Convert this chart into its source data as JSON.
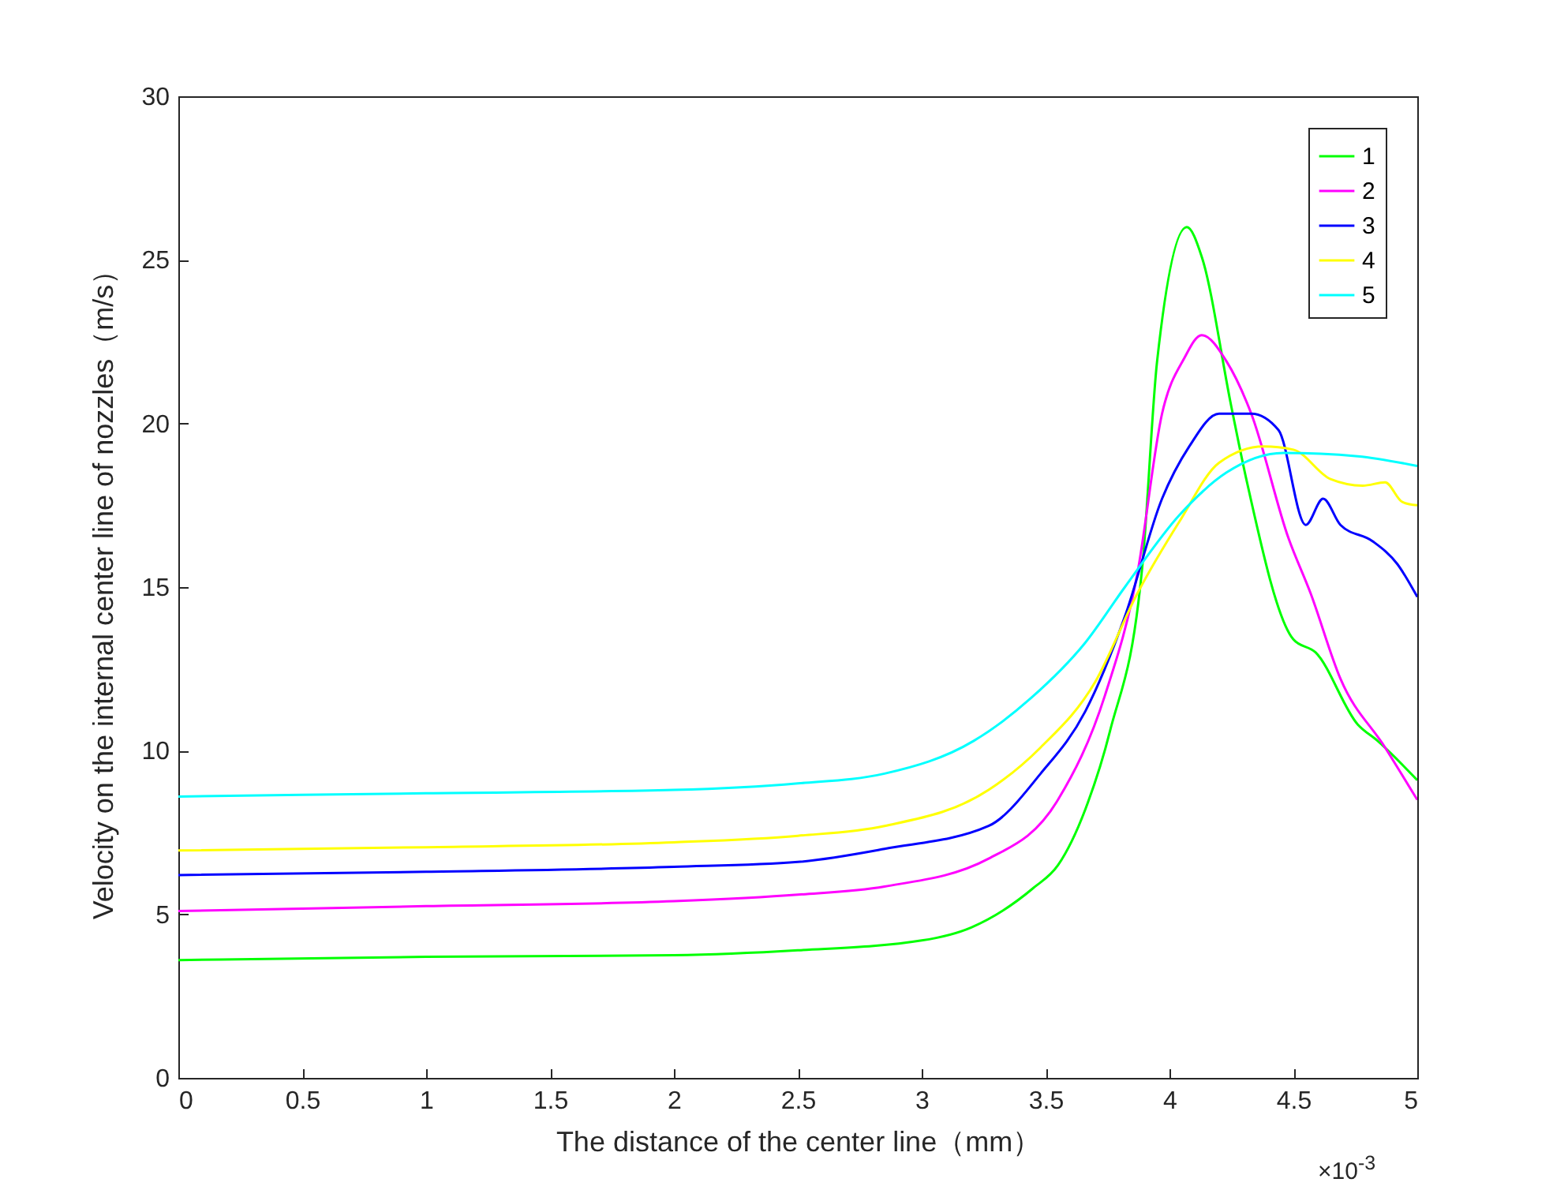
{
  "chart_data": {
    "type": "line",
    "xlabel": "The distance of the center line（mm）",
    "ylabel": "Velocity  on the internal center line of nozzles（m/s）",
    "annotations": [
      "×10$^{-3}$"
    ],
    "xlim": [
      0,
      5
    ],
    "xticks": [
      0,
      0.5,
      1,
      1.5,
      2,
      2.5,
      3,
      3.5,
      4,
      4.5,
      5
    ],
    "ylim": [
      0,
      30
    ],
    "yticks": [
      0,
      5,
      10,
      15,
      20,
      25,
      30
    ],
    "legend": "top right",
    "series": [
      {
        "name": "1",
        "color": "#00ff00",
        "x": [
          0,
          1,
          2,
          2.5,
          3,
          3.2,
          3.45,
          3.55,
          3.66,
          3.76,
          3.89,
          3.95,
          4.07,
          4.13,
          4.25,
          4.31,
          4.5,
          4.59,
          4.76,
          4.84,
          5
        ],
        "values": [
          3.6,
          3.7,
          3.75,
          3.9,
          4.2,
          4.6,
          5.8,
          6.5,
          8.2,
          10.6,
          15.6,
          21.9,
          26,
          25.1,
          20.5,
          18.3,
          13.4,
          13,
          10.8,
          10.3,
          9.1
        ]
      },
      {
        "name": "2",
        "color": "#ff00ff",
        "x": [
          0,
          1,
          2,
          2.5,
          2.85,
          3.27,
          3.55,
          3.74,
          3.87,
          3.97,
          4.06,
          4.13,
          4.23,
          4.33,
          4.48,
          4.57,
          4.69,
          4.87,
          5
        ],
        "values": [
          5.1,
          5.25,
          5.4,
          5.6,
          5.85,
          6.7,
          8.5,
          11.7,
          15.4,
          20.3,
          22,
          22.7,
          21.9,
          20.3,
          16.5,
          14.8,
          12.2,
          10.1,
          8.5
        ]
      },
      {
        "name": "3",
        "color": "#0000ff",
        "x": [
          0,
          1,
          2,
          2.5,
          2.85,
          3.27,
          3.48,
          3.66,
          3.82,
          3.97,
          4.08,
          4.2,
          4.33,
          4.44,
          4.55,
          4.62,
          4.69,
          4.82,
          4.92,
          5
        ],
        "values": [
          6.2,
          6.3,
          6.45,
          6.6,
          7,
          7.7,
          9.3,
          11.2,
          14.1,
          17.7,
          19.3,
          20.3,
          20.3,
          19.8,
          16.9,
          17.7,
          16.9,
          16.4,
          15.7,
          14.7
        ]
      },
      {
        "name": "4",
        "color": "#ffff00",
        "x": [
          0,
          1,
          2,
          2.5,
          2.85,
          3.27,
          3.48,
          3.7,
          3.87,
          4.04,
          4.2,
          4.38,
          4.5,
          4.65,
          4.78,
          4.87,
          4.94,
          5
        ],
        "values": [
          6.95,
          7.05,
          7.2,
          7.4,
          7.7,
          8.8,
          10.1,
          12.1,
          14.8,
          17,
          18.8,
          19.3,
          19.2,
          18.3,
          18.1,
          18.2,
          17.6,
          17.5
        ]
      },
      {
        "name": "5",
        "color": "#00ffff",
        "x": [
          0,
          1,
          2,
          2.5,
          2.85,
          3.21,
          3.44,
          3.66,
          3.82,
          4.04,
          4.23,
          4.46,
          4.76,
          5
        ],
        "values": [
          8.6,
          8.7,
          8.8,
          9,
          9.3,
          10.3,
          11.6,
          13.3,
          15,
          17.2,
          18.5,
          19.1,
          19,
          18.7
        ]
      }
    ]
  }
}
